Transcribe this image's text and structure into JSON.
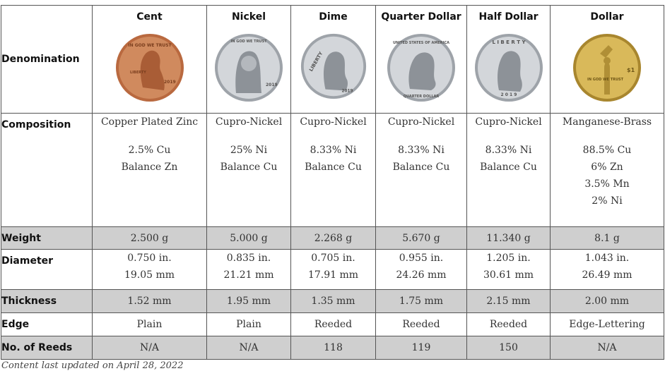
{
  "header": {
    "row_label": "Denomination"
  },
  "coins": [
    {
      "name": "Cent",
      "icon": "lincoln-cent-coin-icon",
      "color": "#c67a4e"
    },
    {
      "name": "Nickel",
      "icon": "jefferson-nickel-coin-icon",
      "color": "#c9ccd0"
    },
    {
      "name": "Dime",
      "icon": "roosevelt-dime-coin-icon",
      "color": "#c9ccd0"
    },
    {
      "name": "Quarter Dollar",
      "icon": "washington-quarter-coin-icon",
      "color": "#c9ccd0"
    },
    {
      "name": "Half Dollar",
      "icon": "kennedy-half-dollar-coin-icon",
      "color": "#c9ccd0"
    },
    {
      "name": "Dollar",
      "icon": "native-american-dollar-coin-icon",
      "color": "#d6b04a"
    }
  ],
  "composition": {
    "label": "Composition",
    "cells": [
      {
        "alloy": "Copper Plated Zinc",
        "lines": [
          "2.5% Cu",
          "Balance Zn"
        ]
      },
      {
        "alloy": "Cupro-Nickel",
        "lines": [
          "25% Ni",
          "Balance Cu"
        ]
      },
      {
        "alloy": "Cupro-Nickel",
        "lines": [
          "8.33% Ni",
          "Balance Cu"
        ]
      },
      {
        "alloy": "Cupro-Nickel",
        "lines": [
          "8.33% Ni",
          "Balance Cu"
        ]
      },
      {
        "alloy": "Cupro-Nickel",
        "lines": [
          "8.33% Ni",
          "Balance Cu"
        ]
      },
      {
        "alloy": "Manganese-Brass",
        "lines": [
          "88.5% Cu",
          "6% Zn",
          "3.5% Mn",
          "2% Ni"
        ]
      }
    ]
  },
  "weight": {
    "label": "Weight",
    "values": [
      "2.500 g",
      "5.000 g",
      "2.268 g",
      "5.670 g",
      "11.340 g",
      "8.1 g"
    ]
  },
  "diameter": {
    "label": "Diameter",
    "values": [
      [
        "0.750 in.",
        "19.05 mm"
      ],
      [
        "0.835 in.",
        "21.21 mm"
      ],
      [
        "0.705 in.",
        "17.91 mm"
      ],
      [
        "0.955 in.",
        "24.26 mm"
      ],
      [
        "1.205 in.",
        "30.61 mm"
      ],
      [
        "1.043 in.",
        "26.49 mm"
      ]
    ]
  },
  "thickness": {
    "label": "Thickness",
    "values": [
      "1.52 mm",
      "1.95 mm",
      "1.35 mm",
      "1.75 mm",
      "2.15 mm",
      "2.00 mm"
    ]
  },
  "edge": {
    "label": "Edge",
    "values": [
      "Plain",
      "Plain",
      "Reeded",
      "Reeded",
      "Reeded",
      "Edge-Lettering"
    ]
  },
  "reeds": {
    "label": "No. of Reeds",
    "values": [
      "N/A",
      "N/A",
      "118",
      "119",
      "150",
      "N/A"
    ]
  },
  "footer": "Content last updated on April 28, 2022"
}
